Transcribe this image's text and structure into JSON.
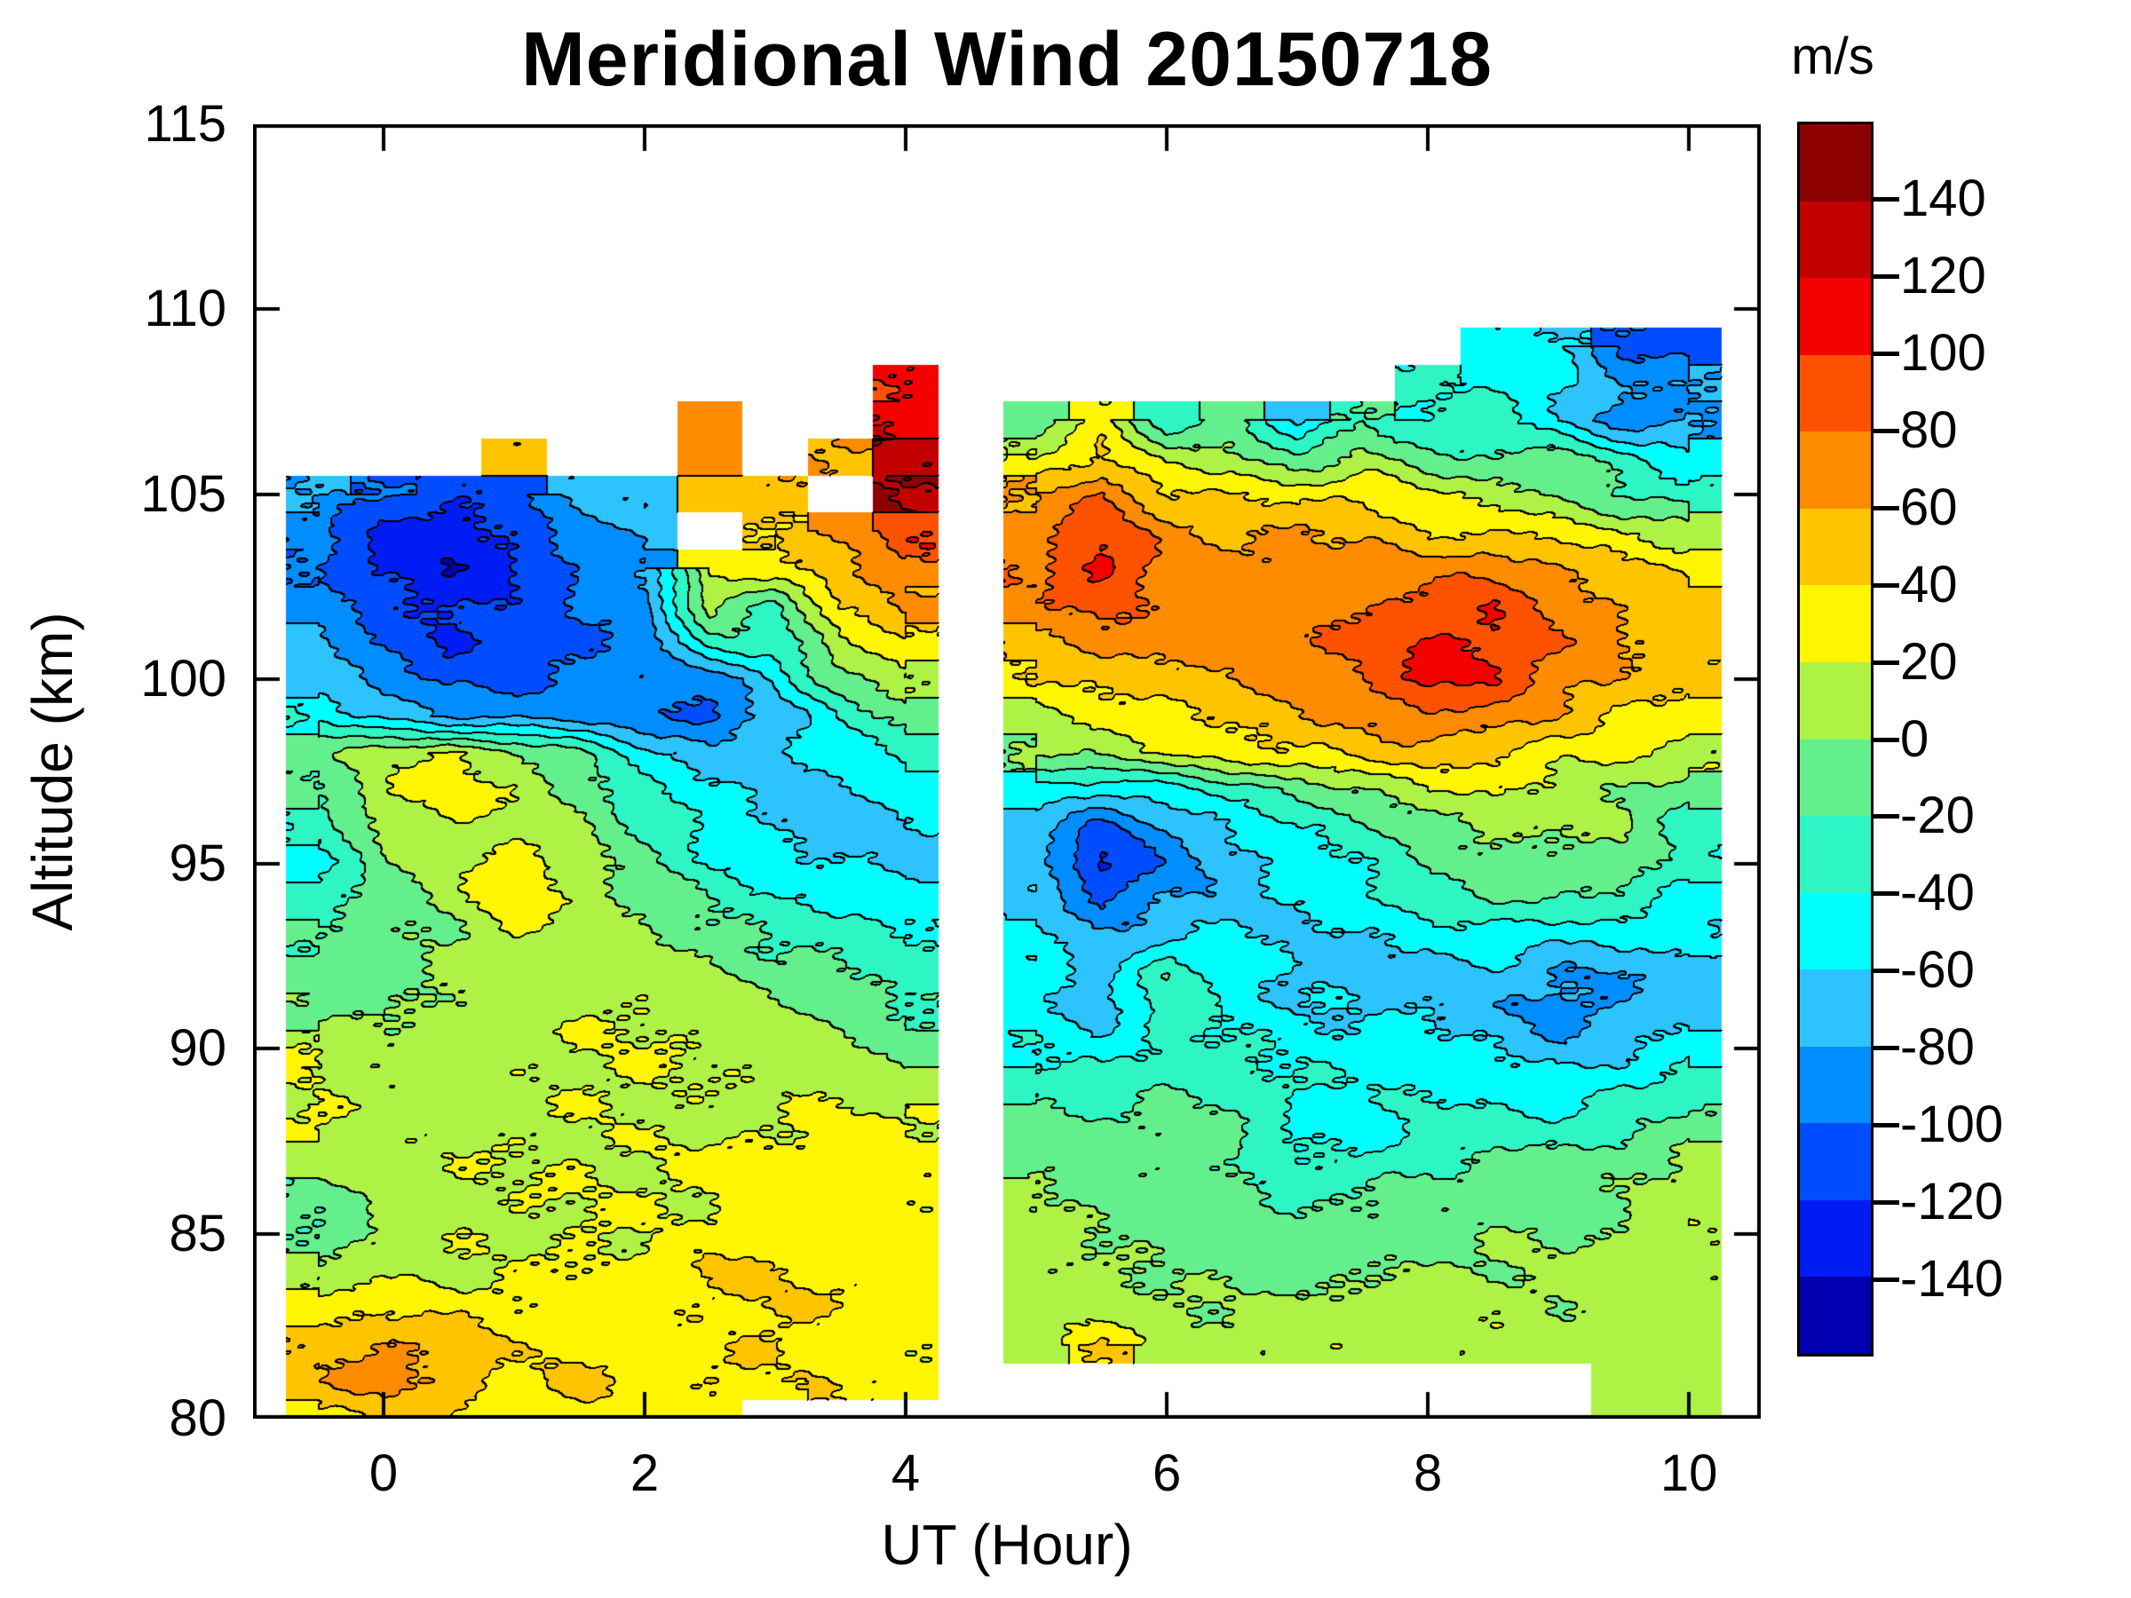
{
  "chart_data": {
    "type": "heatmap",
    "subtype": "filled_contour",
    "title": "Meridional Wind 20150718",
    "xlabel": "UT (Hour)",
    "ylabel": "Altitude (km)",
    "x_ticks": [
      0,
      2,
      4,
      6,
      8,
      10
    ],
    "y_ticks": [
      115,
      110,
      105,
      100,
      95,
      90,
      85,
      80
    ],
    "xlim": [
      -1.0,
      10.55
    ],
    "ylim": [
      80,
      115
    ],
    "grid_on": false,
    "legend_position": "right-colorbar",
    "colorbar": {
      "label": "m/s",
      "ticks": [
        140,
        120,
        100,
        80,
        60,
        40,
        20,
        0,
        -20,
        -40,
        -60,
        -80,
        -100,
        -120,
        -140
      ],
      "range": [
        -160,
        160
      ],
      "band_width": 20,
      "colors_low_to_high": [
        "#0000B0",
        "#001CF5",
        "#004DFF",
        "#008DFF",
        "#2CC3FF",
        "#00FFFF",
        "#2DF5C4",
        "#64EF8D",
        "#AEF245",
        "#FEF600",
        "#FFC400",
        "#FF8B00",
        "#FF5200",
        "#F50000",
        "#C30000",
        "#8D0000"
      ]
    },
    "grid": {
      "x_hours": [
        -1,
        -0.5,
        0,
        0.5,
        1,
        1.5,
        2,
        2.5,
        3,
        3.5,
        4,
        4.5,
        5,
        5.5,
        6,
        6.5,
        7,
        7.5,
        8,
        8.5,
        9,
        9.5,
        10,
        10.5
      ],
      "altitudes_km": [
        110,
        109,
        108,
        107,
        106,
        105,
        104,
        103,
        102,
        101,
        100,
        99,
        98,
        97,
        96,
        95,
        94,
        93,
        92,
        91,
        90,
        89,
        88,
        87,
        86,
        85,
        84,
        83,
        82,
        81,
        80
      ],
      "values_mps": [
        [
          null,
          null,
          null,
          null,
          null,
          null,
          null,
          null,
          null,
          null,
          null,
          null,
          null,
          null,
          null,
          null,
          null,
          null,
          null,
          null,
          null,
          null,
          null,
          null
        ],
        [
          null,
          null,
          null,
          null,
          null,
          null,
          null,
          null,
          null,
          null,
          null,
          null,
          null,
          null,
          null,
          null,
          null,
          null,
          null,
          -50,
          -60,
          -105,
          -110,
          null
        ],
        [
          null,
          null,
          null,
          null,
          null,
          null,
          null,
          null,
          null,
          null,
          100,
          null,
          null,
          null,
          null,
          null,
          null,
          null,
          -40,
          -45,
          -55,
          -85,
          -75,
          null
        ],
        [
          null,
          null,
          null,
          null,
          null,
          null,
          null,
          65,
          null,
          null,
          115,
          null,
          -10,
          30,
          -30,
          -10,
          -70,
          -20,
          -45,
          -30,
          -60,
          -90,
          -80,
          null
        ],
        [
          null,
          null,
          null,
          null,
          55,
          null,
          null,
          60,
          null,
          60,
          135,
          null,
          25,
          45,
          10,
          5,
          -20,
          0,
          -15,
          -20,
          -10,
          -30,
          -50,
          null
        ],
        [
          null,
          -75,
          -100,
          -115,
          -110,
          -70,
          -70,
          50,
          55,
          null,
          145,
          null,
          60,
          80,
          40,
          35,
          30,
          40,
          20,
          15,
          0,
          -20,
          -35,
          null
        ],
        [
          null,
          -95,
          -125,
          -135,
          -120,
          -90,
          -75,
          null,
          45,
          70,
          95,
          null,
          70,
          95,
          65,
          55,
          60,
          55,
          45,
          40,
          35,
          20,
          10,
          null
        ],
        [
          null,
          -100,
          -130,
          -140,
          -125,
          -100,
          -80,
          30,
          35,
          55,
          80,
          null,
          75,
          105,
          70,
          65,
          70,
          70,
          70,
          80,
          60,
          45,
          30,
          null
        ],
        [
          null,
          -90,
          -115,
          -130,
          -115,
          -95,
          -85,
          10,
          -20,
          40,
          60,
          null,
          70,
          85,
          75,
          70,
          75,
          80,
          90,
          95,
          70,
          55,
          45,
          null
        ],
        [
          null,
          -80,
          -105,
          -120,
          -110,
          -100,
          -90,
          -25,
          -35,
          15,
          35,
          null,
          55,
          70,
          70,
          70,
          80,
          85,
          100,
          100,
          75,
          60,
          50,
          null
        ],
        [
          null,
          -65,
          -90,
          -105,
          -100,
          -95,
          -95,
          -95,
          -55,
          -10,
          15,
          null,
          35,
          50,
          55,
          60,
          70,
          80,
          105,
          95,
          70,
          55,
          45,
          null
        ],
        [
          null,
          -45,
          -60,
          -80,
          -85,
          -85,
          -100,
          -110,
          -75,
          -40,
          -15,
          null,
          20,
          30,
          35,
          45,
          55,
          60,
          75,
          70,
          55,
          40,
          35,
          null
        ],
        [
          null,
          -5,
          15,
          25,
          5,
          -20,
          -55,
          -75,
          -70,
          -50,
          -30,
          null,
          0,
          10,
          20,
          30,
          35,
          45,
          50,
          45,
          30,
          25,
          20,
          null
        ],
        [
          null,
          -15,
          20,
          30,
          15,
          -10,
          -40,
          -55,
          -65,
          -65,
          -50,
          null,
          -45,
          -60,
          -50,
          -35,
          -20,
          0,
          20,
          25,
          15,
          5,
          -15,
          null
        ],
        [
          null,
          -35,
          5,
          15,
          10,
          0,
          -25,
          -45,
          -60,
          -70,
          -60,
          null,
          -70,
          -110,
          -85,
          -60,
          -40,
          -25,
          -5,
          10,
          5,
          0,
          -30,
          null
        ],
        [
          null,
          -45,
          -10,
          10,
          30,
          10,
          -15,
          -35,
          -50,
          -60,
          -65,
          null,
          -75,
          -130,
          -95,
          -70,
          -50,
          -35,
          -15,
          0,
          -5,
          -10,
          -40,
          null
        ],
        [
          null,
          -35,
          -15,
          5,
          35,
          15,
          0,
          -20,
          -35,
          -45,
          -55,
          null,
          -65,
          -105,
          -80,
          -65,
          -55,
          -45,
          -30,
          -20,
          -25,
          -30,
          -50,
          null
        ],
        [
          null,
          -20,
          -10,
          0,
          20,
          10,
          5,
          -10,
          -25,
          -30,
          -40,
          null,
          -55,
          -75,
          -60,
          -55,
          -60,
          -60,
          -55,
          -50,
          -60,
          -55,
          -55,
          null
        ],
        [
          null,
          -10,
          -5,
          5,
          10,
          10,
          15,
          5,
          -15,
          -20,
          -30,
          null,
          -45,
          -70,
          -15,
          -50,
          -65,
          -70,
          -70,
          -70,
          -85,
          -80,
          -65,
          null
        ],
        [
          null,
          -5,
          0,
          10,
          15,
          15,
          20,
          10,
          0,
          -10,
          -20,
          null,
          -50,
          -65,
          -30,
          -45,
          -60,
          -65,
          -65,
          -75,
          -90,
          -75,
          -60,
          null
        ],
        [
          null,
          25,
          5,
          10,
          15,
          20,
          15,
          15,
          10,
          5,
          -10,
          null,
          -40,
          -50,
          -35,
          -40,
          -50,
          -55,
          -55,
          -60,
          -70,
          -60,
          -45,
          null
        ],
        [
          null,
          20,
          5,
          10,
          10,
          15,
          20,
          15,
          15,
          20,
          15,
          null,
          -25,
          -35,
          -25,
          -30,
          -40,
          -45,
          -40,
          -45,
          -50,
          -40,
          -30,
          null
        ],
        [
          null,
          25,
          10,
          10,
          15,
          15,
          15,
          20,
          20,
          30,
          25,
          null,
          -15,
          -20,
          -15,
          -20,
          -45,
          -50,
          -30,
          -30,
          -35,
          -25,
          -20,
          null
        ],
        [
          null,
          10,
          10,
          15,
          15,
          20,
          20,
          25,
          30,
          35,
          30,
          null,
          -5,
          -10,
          -10,
          -15,
          -40,
          -35,
          -20,
          -15,
          -15,
          -10,
          5,
          null
        ],
        [
          null,
          -20,
          0,
          15,
          20,
          20,
          25,
          25,
          30,
          30,
          25,
          null,
          0,
          -5,
          -10,
          -10,
          -20,
          -15,
          -10,
          -10,
          -10,
          -5,
          10,
          null
        ],
        [
          null,
          -20,
          5,
          15,
          20,
          25,
          20,
          25,
          35,
          30,
          25,
          null,
          5,
          0,
          -5,
          -10,
          -15,
          -10,
          -10,
          -5,
          -5,
          0,
          15,
          null
        ],
        [
          null,
          0,
          15,
          20,
          20,
          25,
          30,
          45,
          35,
          35,
          30,
          null,
          10,
          5,
          0,
          -5,
          -10,
          -5,
          0,
          0,
          0,
          5,
          10,
          null
        ],
        [
          null,
          30,
          40,
          35,
          30,
          25,
          30,
          35,
          40,
          35,
          30,
          null,
          10,
          15,
          5,
          0,
          5,
          5,
          10,
          10,
          5,
          10,
          15,
          null
        ],
        [
          null,
          55,
          65,
          60,
          35,
          30,
          25,
          30,
          40,
          30,
          25,
          null,
          15,
          40,
          10,
          5,
          10,
          10,
          15,
          20,
          10,
          15,
          10,
          null
        ],
        [
          null,
          60,
          70,
          55,
          30,
          45,
          30,
          40,
          35,
          40,
          30,
          null,
          null,
          null,
          null,
          null,
          null,
          null,
          null,
          null,
          null,
          10,
          10,
          null
        ],
        [
          null,
          35,
          45,
          35,
          15,
          30,
          25,
          30,
          null,
          null,
          null,
          null,
          null,
          null,
          null,
          null,
          null,
          null,
          null,
          null,
          null,
          15,
          5,
          null
        ]
      ]
    }
  }
}
